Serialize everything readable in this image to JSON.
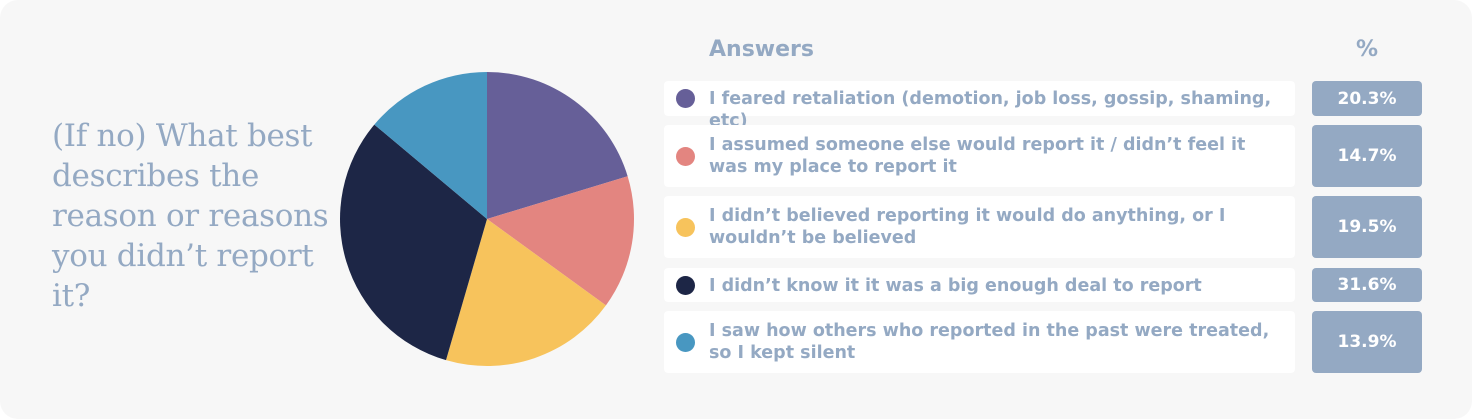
{
  "question": "(If no) What best describes the reason or reasons you didn’t report it?",
  "table": {
    "answers_header": "Answers",
    "percent_header": "%"
  },
  "chart_data": {
    "type": "pie",
    "title": "(If no) What best describes the reason or reasons you didn’t report it?",
    "series": [
      {
        "name": "I feared retaliation (demotion, job loss, gossip, shaming, etc)",
        "value": 20.3,
        "label": "20.3%",
        "color": "#665f98"
      },
      {
        "name": "I assumed someone else would report it / didn’t feel it was my place to report it",
        "value": 14.7,
        "label": "14.7%",
        "color": "#e38580"
      },
      {
        "name": "I didn’t believed reporting it would do anything, or I wouldn’t be believed",
        "value": 19.5,
        "label": "19.5%",
        "color": "#f7c35c"
      },
      {
        "name": "I didn’t know it it was a big enough deal to report",
        "value": 31.6,
        "label": "31.6%",
        "color": "#1d2646"
      },
      {
        "name": "I saw how others who reported in the past were treated, so I kept silent",
        "value": 13.9,
        "label": "13.9%",
        "color": "#4897c1"
      }
    ]
  }
}
